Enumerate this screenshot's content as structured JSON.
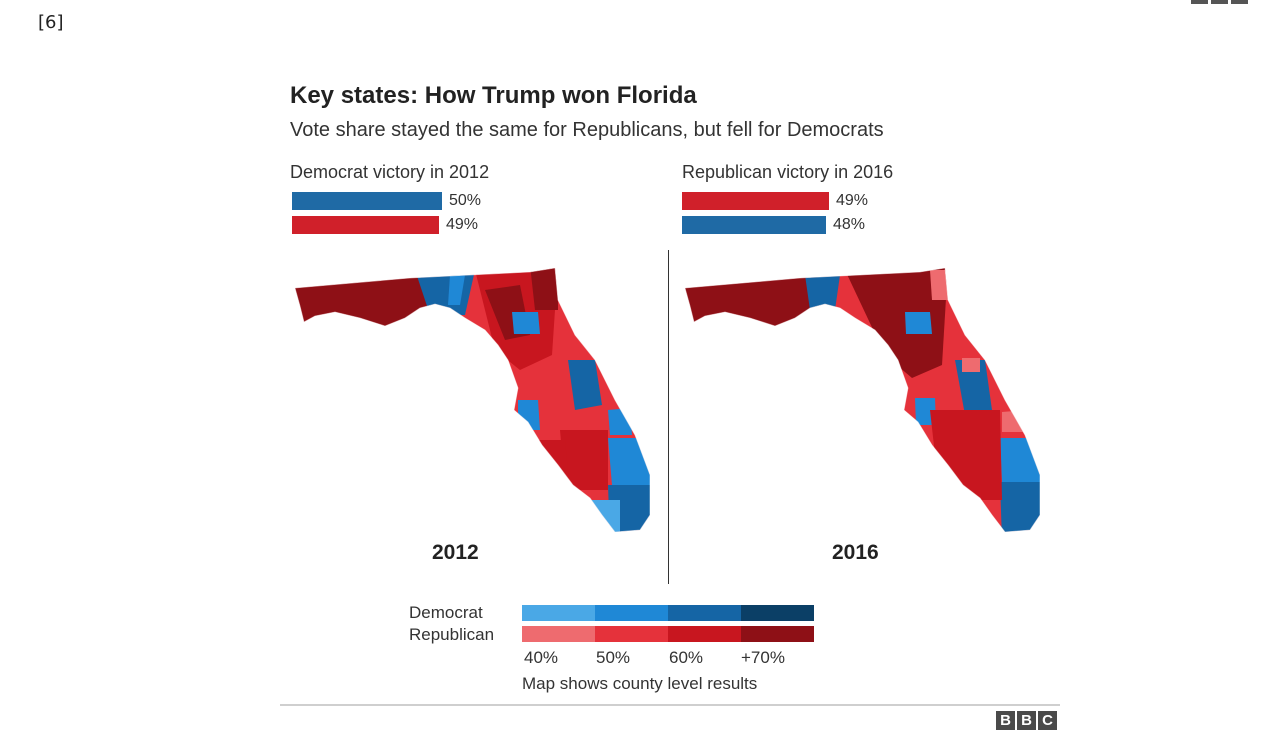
{
  "reference_marker": "[6]",
  "title": "Key states: How Trump won Florida",
  "subtitle": "Vote share stayed the same for Republicans, but fell for Democrats",
  "panels": [
    {
      "label": "Democrat victory in 2012",
      "year": "2012",
      "bars": [
        {
          "party": "Democrat",
          "value": 50,
          "text": "50%",
          "color": "#1f6aa5"
        },
        {
          "party": "Republican",
          "value": 49,
          "text": "49%",
          "color": "#d0202a"
        }
      ]
    },
    {
      "label": "Republican victory in 2016",
      "year": "2016",
      "bars": [
        {
          "party": "Republican",
          "value": 49,
          "text": "49%",
          "color": "#d0202a"
        },
        {
          "party": "Democrat",
          "value": 48,
          "text": "48%",
          "color": "#1f6aa5"
        }
      ]
    }
  ],
  "legend": {
    "democrat_label": "Democrat",
    "republican_label": "Republican",
    "democrat_colors": [
      "#4aa8e6",
      "#1f88d6",
      "#1565a5",
      "#0b3f66"
    ],
    "republican_colors": [
      "#ee6b6f",
      "#e5323b",
      "#c8161f",
      "#8e1016"
    ],
    "ticks": [
      "40%",
      "50%",
      "60%",
      "+70%"
    ],
    "note": "Map shows county level results"
  },
  "source_logo": [
    "B",
    "B",
    "C"
  ]
}
